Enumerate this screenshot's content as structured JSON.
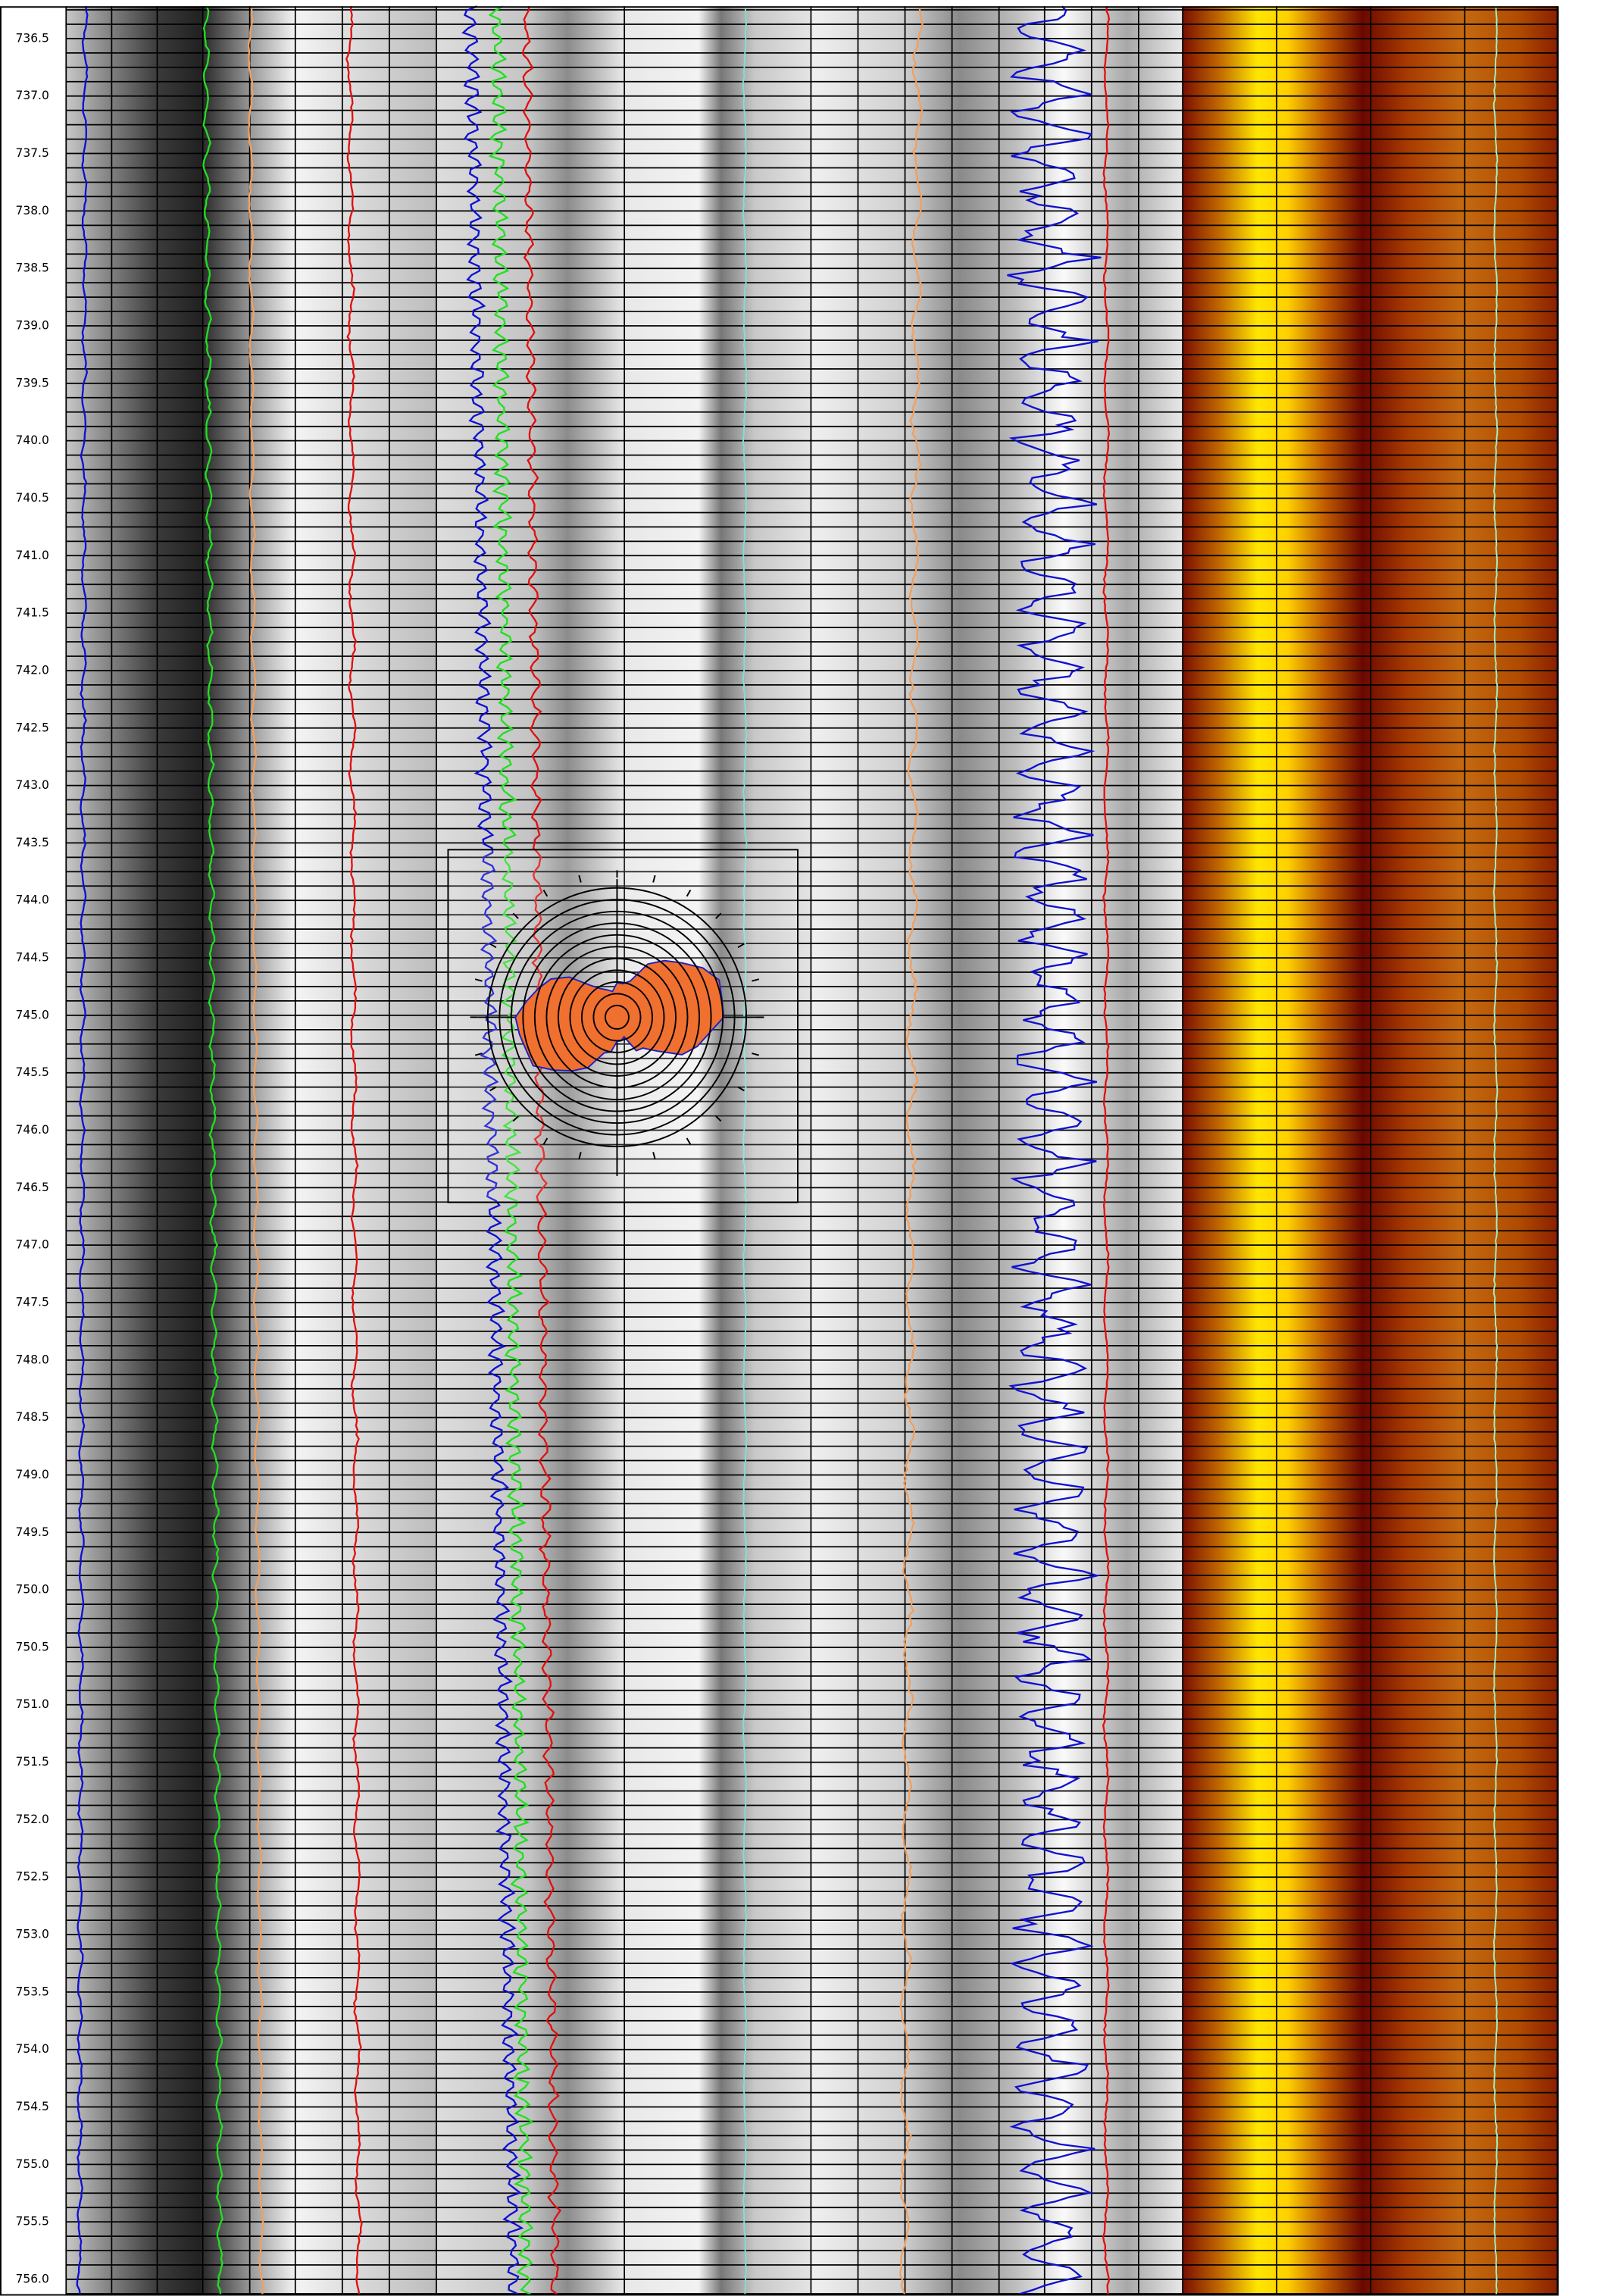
{
  "depth_track": {
    "labels": [
      "736.5",
      "737.0",
      "737.5",
      "738.0",
      "738.5",
      "739.0",
      "739.5",
      "740.0",
      "740.5",
      "741.0",
      "741.5",
      "742.0",
      "742.5",
      "743.0",
      "743.5",
      "744.0",
      "744.5",
      "745.0",
      "745.5",
      "746.0",
      "746.5",
      "747.0",
      "747.5",
      "748.0",
      "748.5",
      "749.0",
      "749.5",
      "750.0",
      "750.5",
      "751.0",
      "751.5",
      "752.0",
      "752.5",
      "753.0",
      "753.5",
      "754.0",
      "754.5",
      "755.0",
      "755.5",
      "756.0"
    ]
  }
}
